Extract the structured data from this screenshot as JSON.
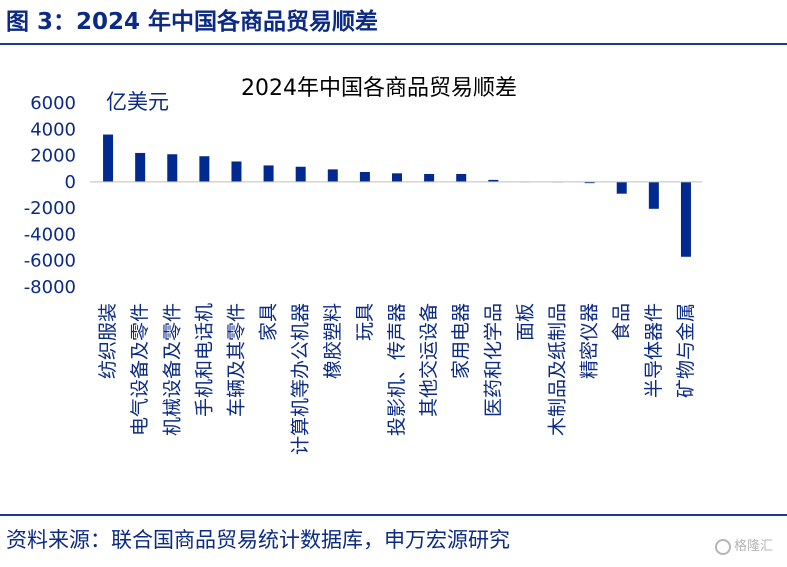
{
  "figure": {
    "header": "图 3：2024 年中国各商品贸易顺差",
    "source": "资料来源：联合国商品贸易统计数据库，申万宏源研究",
    "watermark": "格隆汇"
  },
  "colors": {
    "bar": "#002a8f",
    "accent": "#1b3c8c",
    "axis": "#bfbfbf"
  },
  "chart_data": {
    "type": "bar",
    "title": "2024年中国各商品贸易顺差",
    "unit_label": "亿美元",
    "ylim": [
      -8000,
      6000
    ],
    "yticks": [
      6000,
      4000,
      2000,
      0,
      -2000,
      -4000,
      -6000,
      -8000
    ],
    "grid": false,
    "legend": "none",
    "categories": [
      "纺织服装",
      "电气设备及零件",
      "机械设备及零件",
      "手机和电话机",
      "车辆及其零件",
      "家具",
      "计算机等办公机器",
      "橡胶塑料",
      "玩具",
      "投影机、传声器",
      "其他交运设备",
      "家用电器",
      "医药和化学品",
      "面板",
      "木制品及纸制品",
      "精密仪器",
      "食品",
      "半导体器件",
      "矿物与金属"
    ],
    "values": [
      3600,
      2200,
      2100,
      1950,
      1550,
      1250,
      1150,
      950,
      750,
      650,
      600,
      600,
      150,
      20,
      10,
      -100,
      -900,
      -2050,
      -5700
    ]
  }
}
